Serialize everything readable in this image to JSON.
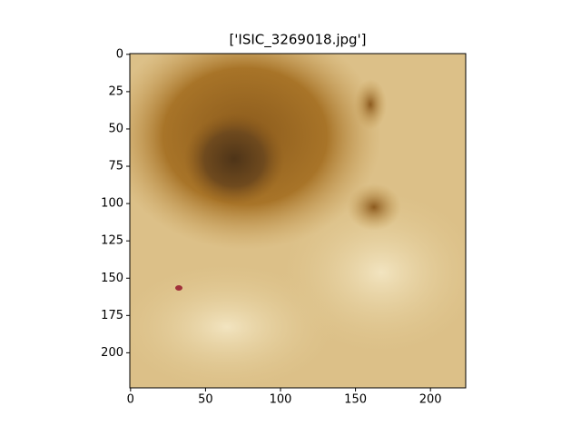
{
  "chart_data": {
    "type": "image",
    "title": "['ISIC_3269018.jpg']",
    "xlim": [
      -0.5,
      223.5
    ],
    "ylim": [
      223.5,
      -0.5
    ],
    "xticks": [
      0,
      50,
      100,
      150,
      200
    ],
    "yticks": [
      0,
      25,
      50,
      75,
      100,
      125,
      150,
      175,
      200
    ]
  }
}
